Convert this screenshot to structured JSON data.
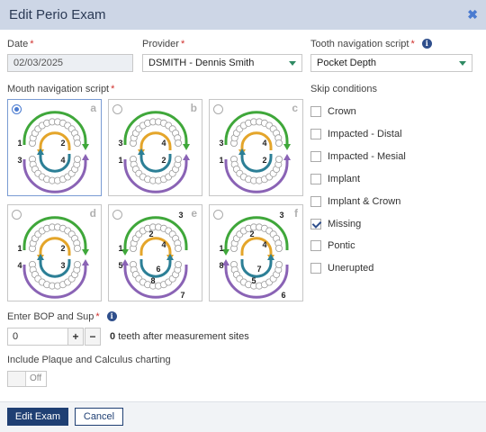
{
  "dialog": {
    "title": "Edit Perio Exam",
    "close_icon": "close-icon"
  },
  "date": {
    "label": "Date",
    "required": "*",
    "value": "02/03/2025"
  },
  "provider": {
    "label": "Provider",
    "required": "*",
    "value": "DSMITH - Dennis Smith"
  },
  "tooth_script": {
    "label": "Tooth navigation script",
    "required": "*",
    "info": "i",
    "value": "Pocket Depth"
  },
  "mouth_script": {
    "label": "Mouth navigation script",
    "required": "*",
    "selected": "a",
    "options": [
      {
        "letter": "a",
        "nums": [
          "1",
          "2",
          "3",
          "4"
        ]
      },
      {
        "letter": "b",
        "nums": [
          "3",
          "4",
          "1",
          "2"
        ]
      },
      {
        "letter": "c",
        "nums": [
          "3",
          "4",
          "1",
          "2"
        ]
      },
      {
        "letter": "d",
        "nums": [
          "1",
          "2",
          "4",
          "3"
        ]
      },
      {
        "letter": "e",
        "nums": [
          "1",
          "2",
          "3",
          "4",
          "5",
          "6",
          "8",
          "7"
        ]
      },
      {
        "letter": "f",
        "nums": [
          "1",
          "2",
          "3",
          "4",
          "8",
          "7",
          "5",
          "6"
        ]
      }
    ]
  },
  "skip": {
    "label": "Skip conditions",
    "items": [
      {
        "label": "Crown",
        "checked": false
      },
      {
        "label": "Impacted - Distal",
        "checked": false
      },
      {
        "label": "Impacted - Mesial",
        "checked": false
      },
      {
        "label": "Implant",
        "checked": false
      },
      {
        "label": "Implant & Crown",
        "checked": false
      },
      {
        "label": "Missing",
        "checked": true
      },
      {
        "label": "Pontic",
        "checked": false
      },
      {
        "label": "Unerupted",
        "checked": false
      }
    ]
  },
  "bop": {
    "label": "Enter BOP and Sup",
    "required": "*",
    "info": "i",
    "value": "0",
    "plus": "+",
    "minus": "−",
    "count": "0",
    "suffix": "teeth after measurement sites"
  },
  "plaque": {
    "label": "Include Plaque and Calculus charting",
    "toggle_state": "Off"
  },
  "footer": {
    "primary": "Edit Exam",
    "secondary": "Cancel"
  },
  "colors": {
    "green": "#3fa73a",
    "orange": "#e4a52a",
    "teal": "#2c7f96",
    "purple": "#8a63b5",
    "accent": "#1f3f73"
  }
}
